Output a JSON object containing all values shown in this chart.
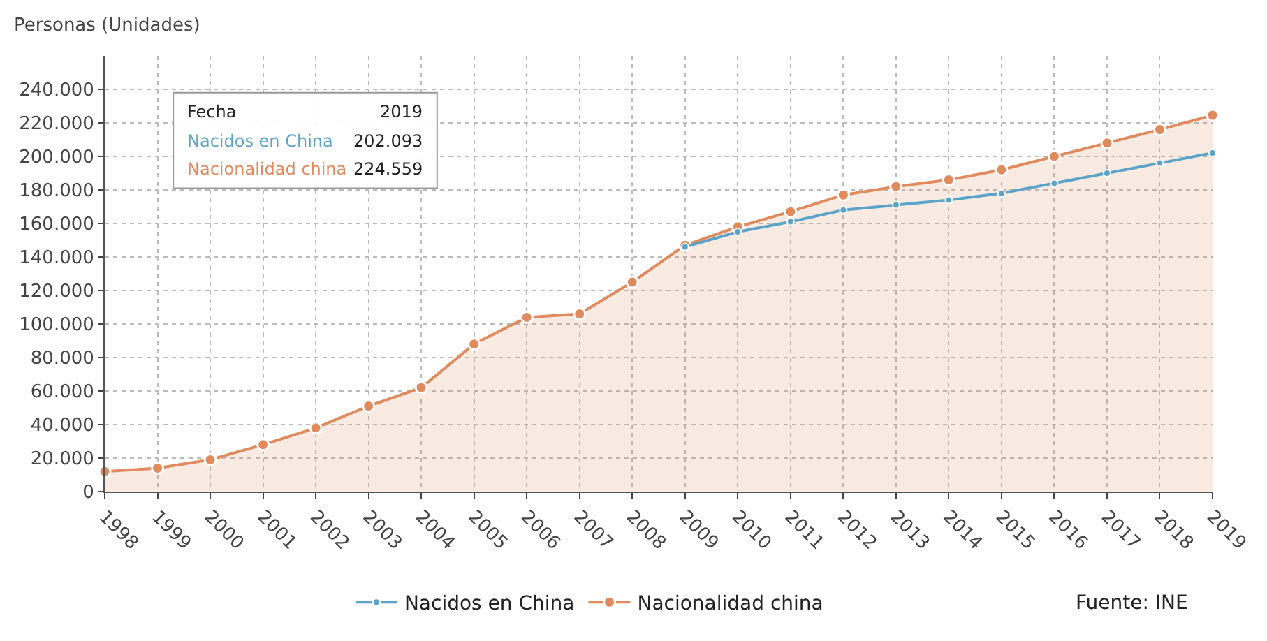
{
  "chart_data": {
    "type": "line",
    "ylabel": "Personas (Unidades)",
    "categories": [
      "1998",
      "1999",
      "2000",
      "2001",
      "2002",
      "2003",
      "2004",
      "2005",
      "2006",
      "2007",
      "2008",
      "2009",
      "2010",
      "2011",
      "2012",
      "2013",
      "2014",
      "2015",
      "2016",
      "2017",
      "2018",
      "2019"
    ],
    "series": [
      {
        "name": "Nacidos en China",
        "color": "#5ba3c9",
        "values": [
          null,
          null,
          null,
          null,
          null,
          null,
          null,
          null,
          null,
          null,
          null,
          146000,
          155000,
          161000,
          168000,
          171000,
          174000,
          178000,
          184000,
          190000,
          196000,
          202093
        ]
      },
      {
        "name": "Nacionalidad china",
        "color": "#e08a5e",
        "type": "area",
        "values": [
          12000,
          14000,
          19000,
          28000,
          38000,
          51000,
          62000,
          88000,
          104000,
          106000,
          125000,
          147000,
          158000,
          167000,
          177000,
          182000,
          186000,
          192000,
          200000,
          208000,
          216000,
          224559
        ]
      }
    ],
    "ylim": [
      0,
      260000
    ],
    "yticks": [
      0,
      {
        "value": 20000,
        "label": "20.000"
      },
      {
        "value": 40000,
        "label": "40.000"
      },
      {
        "value": 60000,
        "label": "60.000"
      },
      {
        "value": 80000,
        "label": "80.000"
      },
      {
        "value": 100000,
        "label": "100.000"
      },
      {
        "value": 120000,
        "label": "120.000"
      },
      {
        "value": 140000,
        "label": "140.000"
      },
      {
        "value": 160000,
        "label": "160.000"
      },
      {
        "value": 180000,
        "label": "180.000"
      },
      {
        "value": 200000,
        "label": "200.000"
      },
      {
        "value": 220000,
        "label": "220.000"
      },
      {
        "value": 240000,
        "label": "240.000"
      }
    ],
    "annotations": [
      "Fecha",
      "2019",
      "Nacidos en China",
      "202.093",
      "Nacionalidad china",
      "224.559",
      "Fuente: INE"
    ],
    "grid": true,
    "legend": "bottom",
    "marker": "circle",
    "line_style": "solid"
  }
}
